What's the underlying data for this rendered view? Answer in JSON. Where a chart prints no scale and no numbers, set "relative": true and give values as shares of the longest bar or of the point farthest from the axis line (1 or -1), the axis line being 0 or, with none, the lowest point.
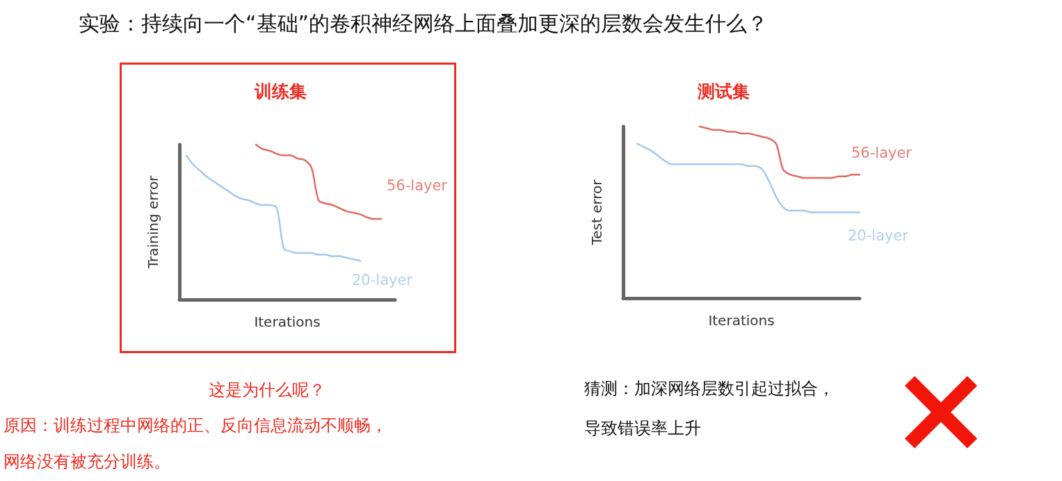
{
  "chart_data": [
    {
      "type": "line",
      "title": "训练集",
      "xlabel": "Iterations",
      "ylabel": "Training error",
      "relative": true,
      "legend": false,
      "grid": false,
      "marker": "none",
      "line_style": "solid",
      "annotations": [
        "实验：持续向一个“基础”的卷积神经网络上面叠加更深的层数会发生什么？",
        "这是为什么呢？",
        "原因：训练过程中网络的正、反向信息流动不顺畅，",
        "网络没有被充分训练。"
      ],
      "categories": [
        null,
        null,
        null,
        null,
        null,
        null,
        null,
        null,
        null,
        null,
        null,
        null,
        null,
        null,
        null,
        null,
        null,
        null,
        null,
        null,
        null,
        null,
        null,
        null,
        null,
        null,
        null,
        null,
        null,
        null,
        null,
        null
      ],
      "series": [
        {
          "name": "56-layer",
          "color": "#e06a5f",
          "values": [
            null,
            null,
            null,
            null,
            null,
            null,
            null,
            null,
            null,
            null,
            null,
            1.0,
            0.97,
            0.96,
            0.94,
            0.93,
            0.93,
            0.91,
            0.9,
            0.85,
            0.64,
            0.62,
            0.61,
            0.59,
            0.57,
            0.56,
            0.55,
            0.53,
            0.52,
            0.52,
            null,
            null
          ]
        },
        {
          "name": "20-layer",
          "color": "#a4c8ec",
          "values": [
            null,
            0.93,
            0.87,
            0.83,
            0.79,
            0.76,
            0.73,
            0.7,
            0.67,
            0.65,
            0.64,
            0.62,
            0.61,
            0.61,
            0.59,
            0.33,
            0.31,
            0.3,
            0.3,
            0.3,
            0.29,
            0.29,
            0.28,
            0.28,
            0.27,
            0.26,
            0.25,
            null,
            null,
            null,
            null,
            null
          ]
        }
      ]
    },
    {
      "type": "line",
      "title": "测试集",
      "xlabel": "Iterations",
      "ylabel": "Test error",
      "relative": true,
      "legend": false,
      "grid": false,
      "marker": "none",
      "line_style": "solid",
      "annotations": [
        "猜测：加深网络层数引起过拟合，",
        "导致错误率上升"
      ],
      "categories": [
        null,
        null,
        null,
        null,
        null,
        null,
        null,
        null,
        null,
        null,
        null,
        null,
        null,
        null,
        null,
        null,
        null,
        null,
        null,
        null,
        null,
        null,
        null,
        null,
        null,
        null,
        null,
        null,
        null,
        null,
        null,
        null,
        null,
        null,
        null
      ],
      "series": [
        {
          "name": "56-layer",
          "color": "#e06a5f",
          "values": [
            null,
            null,
            null,
            null,
            null,
            null,
            null,
            null,
            null,
            null,
            null,
            1.0,
            0.99,
            0.98,
            0.98,
            0.97,
            0.97,
            0.96,
            0.96,
            0.95,
            0.94,
            0.93,
            0.9,
            0.75,
            0.72,
            0.71,
            0.7,
            0.7,
            0.7,
            0.7,
            0.7,
            0.71,
            0.71,
            0.72,
            0.72
          ]
        },
        {
          "name": "20-layer",
          "color": "#a4c8ec",
          "values": [
            null,
            null,
            0.9,
            0.88,
            0.86,
            0.83,
            0.8,
            0.78,
            0.78,
            0.78,
            0.78,
            0.78,
            0.78,
            0.78,
            0.78,
            0.78,
            0.78,
            0.78,
            0.77,
            0.77,
            0.75,
            0.68,
            0.59,
            0.53,
            0.51,
            0.51,
            0.51,
            0.5,
            0.5,
            0.5,
            0.5,
            0.5,
            0.5,
            0.5,
            0.5
          ]
        }
      ]
    }
  ]
}
